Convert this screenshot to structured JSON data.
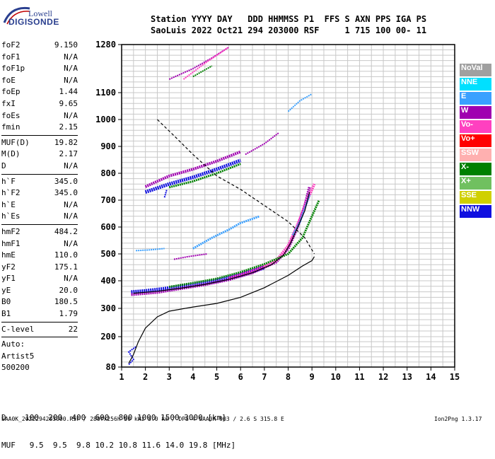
{
  "logo": {
    "line1": "Lowell",
    "line2": "DIGISONDE"
  },
  "header": {
    "line1": "Station YYYY DAY   DDD HHMMSS P1  FFS S AXN PPS IGA PS",
    "line2": "SaoLuis 2022 Oct21 294 203000 RSF     1 715 100 00- 11"
  },
  "params": [
    {
      "label": "foF2",
      "value": "9.150"
    },
    {
      "label": "foF1",
      "value": "N/A"
    },
    {
      "label": "foF1p",
      "value": "N/A"
    },
    {
      "label": "foE",
      "value": "N/A"
    },
    {
      "label": "foEp",
      "value": "1.44"
    },
    {
      "label": "fxI",
      "value": "9.65"
    },
    {
      "label": "foEs",
      "value": "N/A"
    },
    {
      "label": "fmin",
      "value": "2.15"
    },
    {
      "label": "MUF(D)",
      "value": "19.82",
      "sep": true
    },
    {
      "label": "M(D)",
      "value": "2.17"
    },
    {
      "label": "D",
      "value": "N/A"
    },
    {
      "label": "h`F",
      "value": "345.0",
      "sep": true
    },
    {
      "label": "h`F2",
      "value": "345.0"
    },
    {
      "label": "h`E",
      "value": "N/A"
    },
    {
      "label": "h`Es",
      "value": "N/A"
    },
    {
      "label": "hmF2",
      "value": "484.2",
      "sep": true
    },
    {
      "label": "hmF1",
      "value": "N/A"
    },
    {
      "label": "hmE",
      "value": "110.0"
    },
    {
      "label": "yF2",
      "value": "175.1"
    },
    {
      "label": "yF1",
      "value": "N/A"
    },
    {
      "label": "yE",
      "value": "20.0"
    },
    {
      "label": "B0",
      "value": "180.5"
    },
    {
      "label": "B1",
      "value": "1.79"
    },
    {
      "label": "C-level",
      "value": "22",
      "sep": true
    },
    {
      "label": "Auto:",
      "value": "",
      "sep": true
    },
    {
      "label": "Artist5",
      "value": ""
    },
    {
      "label": "500200",
      "value": ""
    }
  ],
  "legend": [
    {
      "label": "NoVal",
      "color": "#a0a0a0",
      "text": "#ffffff"
    },
    {
      "label": "NNE",
      "color": "#00e0ff",
      "text": "#ffffff"
    },
    {
      "label": "E",
      "color": "#3aa0ff",
      "text": "#ffffff"
    },
    {
      "label": "W",
      "color": "#a000b0",
      "text": "#ffffff"
    },
    {
      "label": "Vo-",
      "color": "#ff40c0",
      "text": "#ffffff"
    },
    {
      "label": "Vo+",
      "color": "#ff0000",
      "text": "#ffffff"
    },
    {
      "label": "SSW",
      "color": "#ffb0b0",
      "text": "#ffffff"
    },
    {
      "label": "X-",
      "color": "#008000",
      "text": "#ffffff"
    },
    {
      "label": "X+",
      "color": "#70c060",
      "text": "#ffffff"
    },
    {
      "label": "SSE",
      "color": "#d0d000",
      "text": "#ffffff"
    },
    {
      "label": "NNW",
      "color": "#1010e0",
      "text": "#ffffff"
    }
  ],
  "bottom": {
    "d_row": "D    100  200  400  600  800 1000 1500 3000 [km]",
    "muf_row": "MUF   9.5  9.5  9.8 10.2 10.8 11.6 14.0 19.8 [MHz]"
  },
  "footer": {
    "left": "SAA0K_2022294203000.RSF / 280fx256h 50 kHz 5.0 km / DPS-4 SAA0K 903 / 2.6 S 315.8 E",
    "right": "Ion2Png 1.3.17"
  },
  "chart_data": {
    "type": "scatter",
    "x_ticks": [
      "1",
      "2",
      "3",
      "4",
      "5",
      "6",
      "7",
      "8",
      "9",
      "10",
      "11",
      "12",
      "13",
      "14",
      "15"
    ],
    "y_ticks": [
      "80",
      "200",
      "300",
      "400",
      "500",
      "600",
      "700",
      "800",
      "900",
      "1000",
      "1100",
      "1280"
    ],
    "xlim": [
      1,
      15
    ],
    "ylim": [
      80,
      1280
    ],
    "grid": true,
    "series": [
      {
        "color": "#000000",
        "style": "solid",
        "points": [
          [
            1.3,
            95
          ],
          [
            1.5,
            130
          ],
          [
            1.7,
            180
          ],
          [
            2.0,
            230
          ],
          [
            2.5,
            270
          ],
          [
            3.0,
            290
          ],
          [
            4.0,
            305
          ],
          [
            5.0,
            318
          ],
          [
            6.0,
            340
          ],
          [
            7.0,
            375
          ],
          [
            8.0,
            420
          ],
          [
            8.6,
            455
          ],
          [
            9.0,
            475
          ],
          [
            9.1,
            490
          ]
        ]
      },
      {
        "color": "#000000",
        "style": "dashed",
        "points": [
          [
            2.5,
            1000
          ],
          [
            3.2,
            940
          ],
          [
            4.0,
            870
          ],
          [
            5.0,
            790
          ],
          [
            6.0,
            740
          ],
          [
            7.0,
            680
          ],
          [
            8.0,
            620
          ],
          [
            8.7,
            560
          ],
          [
            9.1,
            500
          ]
        ]
      },
      {
        "color": "#000000",
        "style": "solid",
        "points": [
          [
            1.5,
            355
          ],
          [
            2.5,
            362
          ],
          [
            3.5,
            373
          ],
          [
            4.5,
            387
          ],
          [
            5.5,
            405
          ],
          [
            6.5,
            430
          ],
          [
            7.3,
            460
          ],
          [
            7.8,
            495
          ],
          [
            8.1,
            540
          ],
          [
            8.4,
            600
          ],
          [
            8.7,
            660
          ],
          [
            8.9,
            730
          ]
        ]
      }
    ],
    "traces": [
      {
        "color": "#1010e0",
        "width": 6,
        "points": [
          [
            1.4,
            358
          ],
          [
            2.0,
            362
          ],
          [
            3.0,
            372
          ],
          [
            4.0,
            385
          ],
          [
            5.0,
            400
          ],
          [
            6.0,
            422
          ],
          [
            7.0,
            450
          ]
        ]
      },
      {
        "color": "#a000b0",
        "width": 4,
        "points": [
          [
            1.4,
            350
          ],
          [
            2.5,
            358
          ],
          [
            3.5,
            372
          ],
          [
            4.5,
            386
          ],
          [
            5.5,
            404
          ],
          [
            6.5,
            430
          ],
          [
            7.5,
            470
          ],
          [
            8.0,
            520
          ],
          [
            8.4,
            600
          ],
          [
            8.7,
            680
          ],
          [
            8.9,
            750
          ]
        ]
      },
      {
        "color": "#ff40c0",
        "width": 4,
        "points": [
          [
            5.5,
            410
          ],
          [
            6.5,
            437
          ],
          [
            7.5,
            475
          ],
          [
            8.0,
            530
          ],
          [
            8.4,
            610
          ],
          [
            8.8,
            700
          ],
          [
            9.1,
            760
          ]
        ]
      },
      {
        "color": "#008000",
        "width": 3,
        "points": [
          [
            3.0,
            378
          ],
          [
            4.0,
            392
          ],
          [
            5.0,
            408
          ],
          [
            6.0,
            432
          ],
          [
            7.0,
            462
          ],
          [
            8.0,
            500
          ],
          [
            8.6,
            560
          ],
          [
            9.0,
            640
          ],
          [
            9.3,
            700
          ]
        ]
      },
      {
        "color": "#3aa0ff",
        "width": 3,
        "points": [
          [
            8.2,
            570
          ],
          [
            8.5,
            620
          ],
          [
            8.7,
            670
          ],
          [
            8.9,
            720
          ]
        ]
      },
      {
        "color": "#3aa0ff",
        "width": 3,
        "points": [
          [
            4.0,
            520
          ],
          [
            4.8,
            560
          ],
          [
            5.5,
            590
          ],
          [
            6.0,
            615
          ],
          [
            6.8,
            640
          ]
        ]
      },
      {
        "color": "#3aa0ff",
        "width": 2,
        "points": [
          [
            1.6,
            512
          ],
          [
            2.2,
            515
          ],
          [
            2.8,
            520
          ]
        ]
      },
      {
        "color": "#1010e0",
        "width": 5,
        "points": [
          [
            2.0,
            730
          ],
          [
            3.0,
            760
          ],
          [
            4.0,
            785
          ],
          [
            5.0,
            815
          ],
          [
            6.0,
            848
          ]
        ]
      },
      {
        "color": "#a000b0",
        "width": 4,
        "points": [
          [
            2.0,
            750
          ],
          [
            3.0,
            790
          ],
          [
            4.0,
            815
          ],
          [
            5.0,
            845
          ],
          [
            6.0,
            880
          ]
        ]
      },
      {
        "color": "#008000",
        "width": 3,
        "points": [
          [
            3.0,
            748
          ],
          [
            4.0,
            770
          ],
          [
            5.0,
            800
          ],
          [
            6.0,
            835
          ]
        ]
      },
      {
        "color": "#a000b0",
        "width": 2,
        "points": [
          [
            6.2,
            870
          ],
          [
            7.0,
            910
          ],
          [
            7.6,
            950
          ]
        ]
      },
      {
        "color": "#3aa0ff",
        "width": 2,
        "points": [
          [
            8.0,
            1030
          ],
          [
            8.5,
            1070
          ],
          [
            9.0,
            1095
          ]
        ]
      },
      {
        "color": "#a000b0",
        "width": 2,
        "points": [
          [
            3.0,
            1150
          ],
          [
            4.0,
            1190
          ],
          [
            4.8,
            1230
          ],
          [
            5.5,
            1270
          ]
        ]
      },
      {
        "color": "#ff40c0",
        "width": 2,
        "points": [
          [
            3.6,
            1150
          ],
          [
            4.5,
            1210
          ],
          [
            5.5,
            1270
          ]
        ]
      },
      {
        "color": "#008000",
        "width": 2,
        "points": [
          [
            4.0,
            1160
          ],
          [
            4.8,
            1200
          ]
        ]
      },
      {
        "color": "#a000b0",
        "width": 2,
        "points": [
          [
            3.2,
            480
          ],
          [
            3.8,
            490
          ],
          [
            4.6,
            500
          ]
        ]
      },
      {
        "color": "#1010e0",
        "width": 2,
        "points": [
          [
            1.3,
            90
          ],
          [
            1.5,
            110
          ],
          [
            1.3,
            140
          ],
          [
            1.6,
            160
          ]
        ]
      },
      {
        "color": "#1010e0",
        "width": 2,
        "points": [
          [
            2.8,
            710
          ],
          [
            2.9,
            740
          ]
        ]
      }
    ]
  }
}
